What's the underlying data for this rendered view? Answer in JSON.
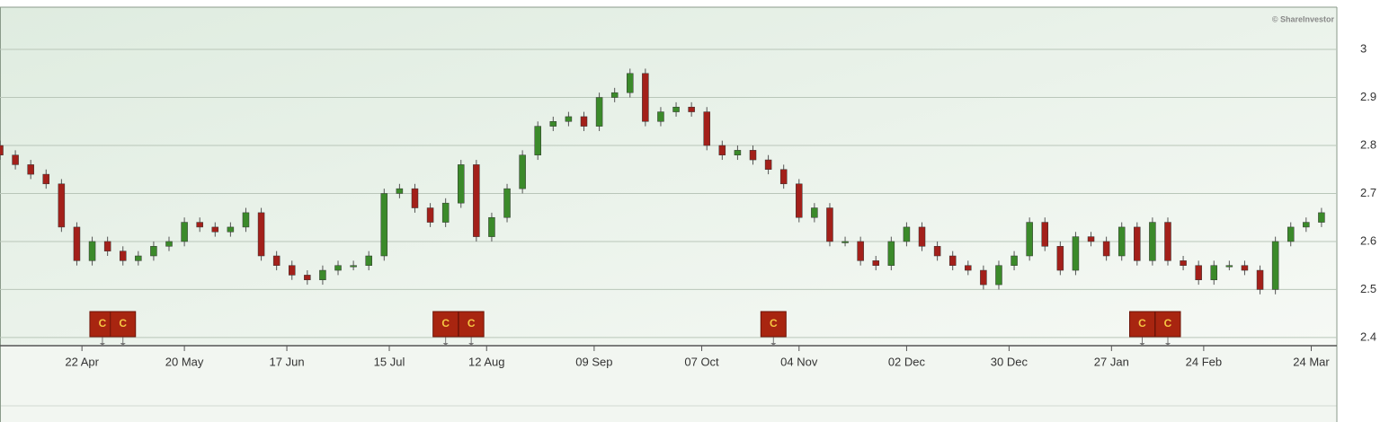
{
  "chart_data": {
    "type": "candlestick",
    "watermark": "© ShareInvestor",
    "x": [
      0,
      3,
      6,
      9,
      12,
      15,
      18,
      21,
      24,
      27,
      30,
      33,
      36,
      39,
      42,
      45,
      48,
      51,
      54,
      57,
      60,
      63,
      66,
      69,
      72,
      75,
      78,
      81,
      84,
      87,
      90,
      93,
      96,
      99,
      102,
      105,
      108,
      111,
      114,
      117,
      120,
      123,
      126,
      129,
      132,
      135,
      138,
      141,
      144,
      147,
      150,
      153,
      156,
      159,
      162,
      165,
      168,
      171,
      174,
      177,
      180,
      183,
      186,
      189,
      192,
      195,
      198,
      201,
      204,
      207,
      210,
      213,
      216,
      219,
      222,
      225,
      228,
      231,
      234,
      237,
      240,
      243,
      246,
      249,
      252,
      255,
      258
    ],
    "open": [
      2.8,
      2.78,
      2.76,
      2.74,
      2.72,
      2.63,
      2.56,
      2.6,
      2.58,
      2.56,
      2.57,
      2.59,
      2.6,
      2.64,
      2.63,
      2.62,
      2.63,
      2.66,
      2.57,
      2.55,
      2.53,
      2.52,
      2.54,
      2.55,
      2.55,
      2.57,
      2.7,
      2.71,
      2.67,
      2.64,
      2.68,
      2.76,
      2.61,
      2.65,
      2.71,
      2.78,
      2.84,
      2.85,
      2.86,
      2.84,
      2.9,
      2.91,
      2.95,
      2.85,
      2.87,
      2.88,
      2.87,
      2.8,
      2.78,
      2.79,
      2.77,
      2.75,
      2.72,
      2.65,
      2.67,
      2.6,
      2.6,
      2.56,
      2.55,
      2.6,
      2.63,
      2.59,
      2.57,
      2.55,
      2.54,
      2.51,
      2.55,
      2.57,
      2.64,
      2.59,
      2.54,
      2.61,
      2.6,
      2.57,
      2.63,
      2.56,
      2.64,
      2.56,
      2.55,
      2.52,
      2.55,
      2.55,
      2.54,
      2.5,
      2.6,
      2.63,
      2.64
    ],
    "high": [
      2.81,
      2.79,
      2.77,
      2.75,
      2.73,
      2.64,
      2.61,
      2.61,
      2.59,
      2.58,
      2.6,
      2.61,
      2.65,
      2.65,
      2.64,
      2.64,
      2.67,
      2.67,
      2.58,
      2.56,
      2.54,
      2.55,
      2.56,
      2.56,
      2.58,
      2.71,
      2.72,
      2.72,
      2.68,
      2.69,
      2.77,
      2.77,
      2.66,
      2.72,
      2.79,
      2.85,
      2.86,
      2.87,
      2.87,
      2.91,
      2.92,
      2.96,
      2.96,
      2.88,
      2.89,
      2.89,
      2.88,
      2.81,
      2.8,
      2.8,
      2.78,
      2.76,
      2.73,
      2.68,
      2.68,
      2.61,
      2.61,
      2.57,
      2.61,
      2.64,
      2.64,
      2.6,
      2.58,
      2.56,
      2.55,
      2.56,
      2.58,
      2.65,
      2.65,
      2.6,
      2.62,
      2.62,
      2.61,
      2.64,
      2.64,
      2.65,
      2.65,
      2.57,
      2.56,
      2.56,
      2.56,
      2.56,
      2.55,
      2.61,
      2.64,
      2.65,
      2.67
    ],
    "low": [
      2.77,
      2.75,
      2.73,
      2.71,
      2.62,
      2.55,
      2.55,
      2.57,
      2.55,
      2.55,
      2.56,
      2.58,
      2.59,
      2.62,
      2.61,
      2.61,
      2.62,
      2.56,
      2.54,
      2.52,
      2.51,
      2.51,
      2.53,
      2.54,
      2.54,
      2.56,
      2.69,
      2.66,
      2.63,
      2.63,
      2.67,
      2.6,
      2.6,
      2.64,
      2.7,
      2.77,
      2.83,
      2.84,
      2.83,
      2.83,
      2.89,
      2.9,
      2.84,
      2.84,
      2.86,
      2.86,
      2.79,
      2.77,
      2.77,
      2.76,
      2.74,
      2.71,
      2.64,
      2.64,
      2.59,
      2.59,
      2.55,
      2.54,
      2.54,
      2.59,
      2.58,
      2.56,
      2.54,
      2.53,
      2.5,
      2.5,
      2.54,
      2.56,
      2.58,
      2.53,
      2.53,
      2.59,
      2.56,
      2.56,
      2.55,
      2.55,
      2.55,
      2.54,
      2.51,
      2.51,
      2.54,
      2.53,
      2.49,
      2.49,
      2.59,
      2.62,
      2.63
    ],
    "close": [
      2.78,
      2.76,
      2.74,
      2.72,
      2.63,
      2.56,
      2.6,
      2.58,
      2.56,
      2.57,
      2.59,
      2.6,
      2.64,
      2.63,
      2.62,
      2.63,
      2.66,
      2.57,
      2.55,
      2.53,
      2.52,
      2.54,
      2.55,
      2.55,
      2.57,
      2.7,
      2.71,
      2.67,
      2.64,
      2.68,
      2.76,
      2.61,
      2.65,
      2.71,
      2.78,
      2.84,
      2.85,
      2.86,
      2.84,
      2.9,
      2.91,
      2.95,
      2.85,
      2.87,
      2.88,
      2.87,
      2.8,
      2.78,
      2.79,
      2.77,
      2.75,
      2.72,
      2.65,
      2.67,
      2.6,
      2.6,
      2.56,
      2.55,
      2.6,
      2.63,
      2.59,
      2.57,
      2.55,
      2.54,
      2.51,
      2.55,
      2.57,
      2.64,
      2.59,
      2.54,
      2.61,
      2.6,
      2.57,
      2.63,
      2.56,
      2.64,
      2.56,
      2.55,
      2.52,
      2.55,
      2.55,
      2.54,
      2.5,
      2.6,
      2.63,
      2.64,
      2.66
    ],
    "up_color": "#3b8a2a",
    "down_color": "#a3201a",
    "xlim": [
      0,
      261
    ],
    "xticks": [
      {
        "value": 16,
        "label": "22 Apr"
      },
      {
        "value": 36,
        "label": "20 May"
      },
      {
        "value": 56,
        "label": "17 Jun"
      },
      {
        "value": 76,
        "label": "15 Jul"
      },
      {
        "value": 95,
        "label": "12 Aug"
      },
      {
        "value": 116,
        "label": "09 Sep"
      },
      {
        "value": 137,
        "label": "07 Oct"
      },
      {
        "value": 156,
        "label": "04 Nov"
      },
      {
        "value": 177,
        "label": "02 Dec"
      },
      {
        "value": 197,
        "label": "30 Dec"
      },
      {
        "value": 217,
        "label": "27 Jan"
      },
      {
        "value": 235,
        "label": "24 Feb"
      },
      {
        "value": 256,
        "label": "24 Mar"
      }
    ],
    "ylim": [
      2.383,
      3.088
    ],
    "yticks": [
      2.4,
      2.5,
      2.6,
      2.7,
      2.8,
      2.9,
      3
    ],
    "grid": true,
    "events": [
      {
        "x": 20,
        "label": "C"
      },
      {
        "x": 24,
        "label": "C"
      },
      {
        "x": 87,
        "label": "C"
      },
      {
        "x": 92,
        "label": "C"
      },
      {
        "x": 151,
        "label": "C"
      },
      {
        "x": 223,
        "label": "C"
      },
      {
        "x": 228,
        "label": "C"
      }
    ],
    "event_color": "#a82510"
  }
}
